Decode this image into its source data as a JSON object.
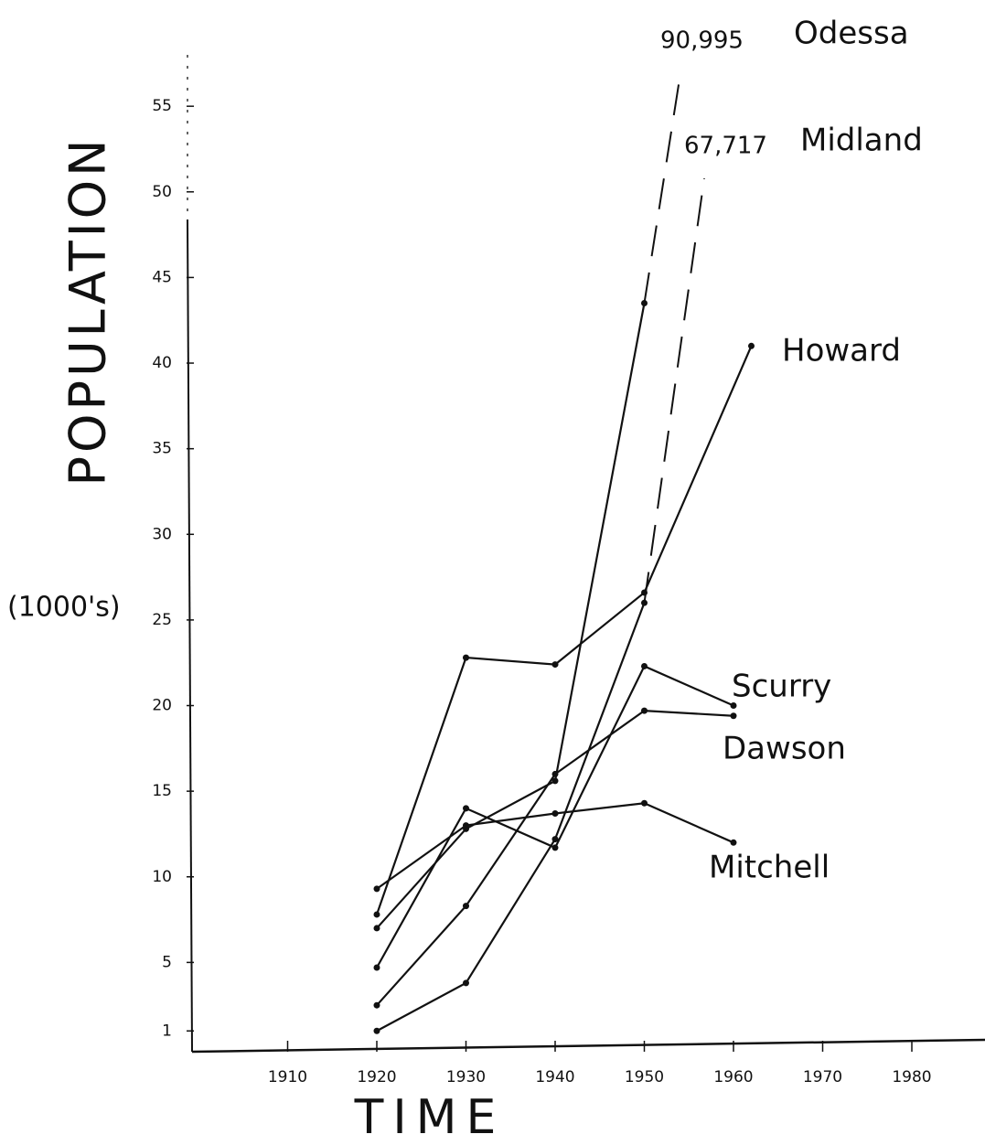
{
  "chart_data": {
    "type": "line",
    "ylabel": "POPULATION",
    "yunit": "(1000's)",
    "xlabel": "TIME",
    "xlim": [
      1900,
      1988
    ],
    "ylim": [
      0,
      58
    ],
    "xticks": [
      1910,
      1920,
      1930,
      1940,
      1950,
      1960,
      1970,
      1980
    ],
    "yticks": [
      1,
      5,
      10,
      15,
      20,
      25,
      30,
      35,
      40,
      45,
      50,
      55
    ],
    "series": [
      {
        "name": "Odessa",
        "color": "#111111",
        "x": [
          1920,
          1930,
          1940,
          1950
        ],
        "values": [
          7,
          12.8,
          15.6,
          43.5
        ],
        "off_scale": {
          "value": 90.995,
          "label": "90,995"
        }
      },
      {
        "name": "Midland",
        "color": "#111111",
        "x": [
          1920,
          1930,
          1940,
          1950
        ],
        "values": [
          1,
          3.8,
          12.2,
          26
        ],
        "off_scale": {
          "value": 67.717,
          "label": "67,717"
        }
      },
      {
        "name": "Howard",
        "color": "#111111",
        "x": [
          1920,
          1930,
          1940,
          1950,
          1962
        ],
        "values": [
          7.8,
          22.8,
          22.4,
          26.6,
          41
        ]
      },
      {
        "name": "Scurry",
        "color": "#111111",
        "x": [
          1920,
          1930,
          1940,
          1950,
          1960
        ],
        "values": [
          4.7,
          14,
          11.7,
          22.3,
          20
        ]
      },
      {
        "name": "Dawson",
        "color": "#111111",
        "x": [
          1920,
          1930,
          1940,
          1950,
          1960
        ],
        "values": [
          2.5,
          8.3,
          16,
          19.7,
          19.4
        ]
      },
      {
        "name": "Mitchell",
        "color": "#111111",
        "x": [
          1920,
          1930,
          1940,
          1950,
          1960
        ],
        "values": [
          9.3,
          13,
          13.7,
          14.3,
          12
        ]
      }
    ]
  }
}
